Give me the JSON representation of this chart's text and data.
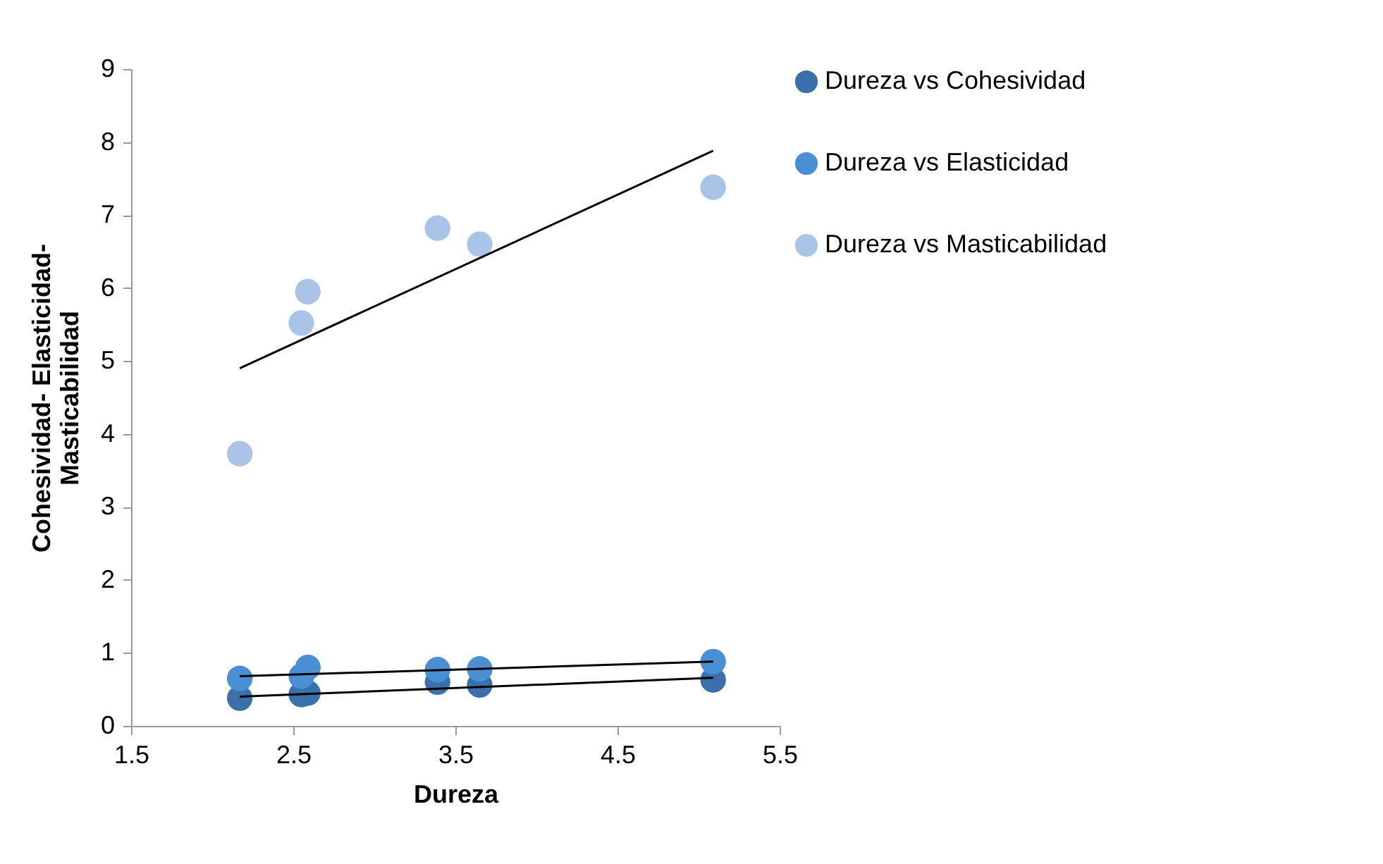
{
  "chart_data": {
    "type": "scatter",
    "xlabel": "Dureza",
    "ylabel": "Cohesividad- Elasticidad-\nMasticabilidad",
    "xlim": [
      1.5,
      5.5
    ],
    "xticks": [
      1.5,
      2.5,
      3.5,
      4.5,
      5.5
    ],
    "ylim": [
      0,
      9
    ],
    "yticks": [
      0,
      1,
      2,
      3,
      4,
      5,
      6,
      7,
      8,
      9
    ],
    "grid": false,
    "legend": "right",
    "marker": "circle",
    "series": [
      {
        "name": "Dureza vs Cohesividad",
        "color": "#3c70ab",
        "x": [
          2.17,
          2.55,
          2.59,
          3.39,
          3.65,
          5.09
        ],
        "values": [
          0.38,
          0.43,
          0.45,
          0.6,
          0.56,
          0.63
        ]
      },
      {
        "name": "Dureza vs Elasticidad",
        "color": "#4a8ed4",
        "x": [
          2.17,
          2.55,
          2.59,
          3.39,
          3.65,
          5.09
        ],
        "values": [
          0.65,
          0.68,
          0.8,
          0.77,
          0.78,
          0.88
        ]
      },
      {
        "name": "Dureza vs Masticabilidad",
        "color": "#a9c4e6",
        "x": [
          2.17,
          2.55,
          2.59,
          3.39,
          3.65,
          5.09
        ],
        "values": [
          3.73,
          5.52,
          5.95,
          6.82,
          6.6,
          7.38
        ]
      },
      {
        "type": "line",
        "marker": "none",
        "color": "#000000",
        "x": [
          2.17,
          5.09
        ],
        "values": [
          0.4,
          0.66
        ]
      },
      {
        "type": "line",
        "marker": "none",
        "color": "#000000",
        "x": [
          2.17,
          5.09
        ],
        "values": [
          0.68,
          0.88
        ]
      },
      {
        "type": "line",
        "marker": "none",
        "color": "#000000",
        "x": [
          2.17,
          5.09
        ],
        "values": [
          4.9,
          7.88
        ]
      }
    ]
  }
}
